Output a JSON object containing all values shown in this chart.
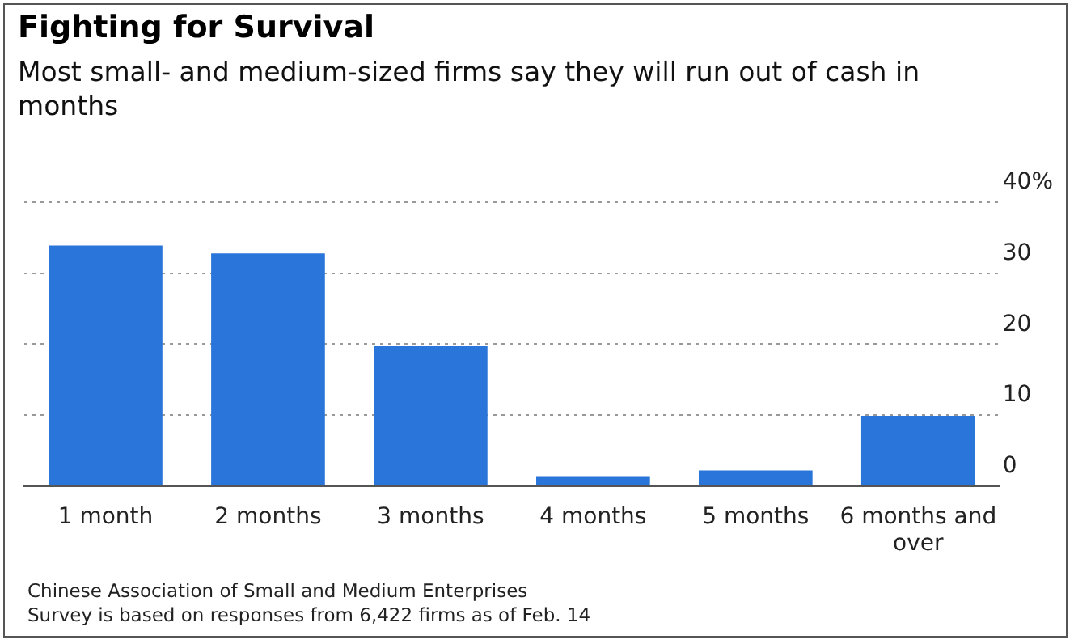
{
  "chart_data": {
    "type": "bar",
    "title": "Fighting for Survival",
    "subtitle": "Most small- and medium-sized firms say they will run out of cash in months",
    "categories": [
      "1 month",
      "2 months",
      "3 months",
      "4 months",
      "5 months",
      "6 months and over"
    ],
    "values": [
      33.9,
      32.8,
      19.7,
      1.4,
      2.2,
      9.9
    ],
    "color": "#2a75d9",
    "ylim": [
      0,
      40
    ],
    "yticks": [
      0,
      10,
      20,
      30,
      {
        "value": 40,
        "label": "40%"
      }
    ],
    "grid": "y",
    "legend": false,
    "annotations": [
      "Chinese Association of Small and Medium Enterprises",
      "Survey is based on responses from 6,422 firms as of Feb. 14"
    ]
  }
}
